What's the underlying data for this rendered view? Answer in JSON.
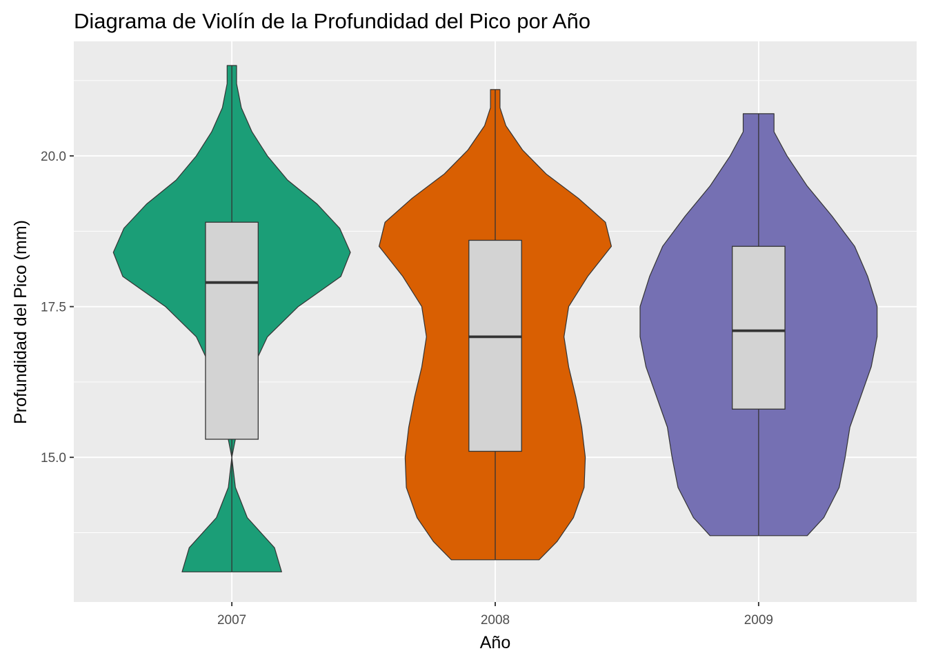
{
  "chart_data": {
    "type": "violin",
    "title": "Diagrama de Violín de la Profundidad del Pico por Año",
    "xlabel": "Año",
    "ylabel": "Profundidad del Pico (mm)",
    "categories": [
      "2007",
      "2008",
      "2009"
    ],
    "ylim": [
      12.6,
      21.9
    ],
    "yticks": [
      15.0,
      17.5,
      20.0
    ],
    "ytick_labels": [
      "15.0",
      "17.5",
      "20.0"
    ],
    "grid": true,
    "legend": "none",
    "series": [
      {
        "category": "2007",
        "color": "#1B9E77",
        "min": 13.1,
        "q1": 15.3,
        "median": 17.9,
        "q3": 18.9,
        "max": 21.5,
        "density": [
          [
            13.1,
            0.42
          ],
          [
            13.5,
            0.36
          ],
          [
            14.0,
            0.13
          ],
          [
            14.5,
            0.03
          ],
          [
            15.0,
            0.0
          ],
          [
            15.5,
            0.05
          ],
          [
            16.0,
            0.1
          ],
          [
            16.5,
            0.18
          ],
          [
            17.0,
            0.3
          ],
          [
            17.5,
            0.56
          ],
          [
            18.0,
            0.92
          ],
          [
            18.4,
            1.0
          ],
          [
            18.8,
            0.91
          ],
          [
            19.2,
            0.72
          ],
          [
            19.6,
            0.47
          ],
          [
            20.0,
            0.3
          ],
          [
            20.4,
            0.17
          ],
          [
            20.8,
            0.08
          ],
          [
            21.2,
            0.04
          ],
          [
            21.5,
            0.04
          ]
        ]
      },
      {
        "category": "2008",
        "color": "#D95F02",
        "min": 13.3,
        "q1": 15.1,
        "median": 17.0,
        "q3": 18.6,
        "max": 21.1,
        "density": [
          [
            13.3,
            0.37
          ],
          [
            13.6,
            0.52
          ],
          [
            14.0,
            0.66
          ],
          [
            14.5,
            0.75
          ],
          [
            15.0,
            0.76
          ],
          [
            15.5,
            0.73
          ],
          [
            16.0,
            0.68
          ],
          [
            16.5,
            0.62
          ],
          [
            17.0,
            0.58
          ],
          [
            17.5,
            0.62
          ],
          [
            18.0,
            0.78
          ],
          [
            18.5,
            0.98
          ],
          [
            18.9,
            0.93
          ],
          [
            19.3,
            0.7
          ],
          [
            19.7,
            0.43
          ],
          [
            20.1,
            0.23
          ],
          [
            20.5,
            0.09
          ],
          [
            20.8,
            0.04
          ],
          [
            21.1,
            0.04
          ]
        ]
      },
      {
        "category": "2009",
        "color": "#7570B3",
        "min": 13.7,
        "q1": 15.8,
        "median": 17.1,
        "q3": 18.5,
        "max": 20.7,
        "density": [
          [
            13.7,
            0.41
          ],
          [
            14.0,
            0.55
          ],
          [
            14.5,
            0.68
          ],
          [
            15.0,
            0.73
          ],
          [
            15.5,
            0.77
          ],
          [
            16.0,
            0.86
          ],
          [
            16.5,
            0.95
          ],
          [
            17.0,
            1.0
          ],
          [
            17.5,
            1.0
          ],
          [
            18.0,
            0.92
          ],
          [
            18.5,
            0.81
          ],
          [
            19.0,
            0.62
          ],
          [
            19.5,
            0.41
          ],
          [
            20.0,
            0.24
          ],
          [
            20.4,
            0.13
          ],
          [
            20.7,
            0.13
          ]
        ]
      }
    ]
  }
}
